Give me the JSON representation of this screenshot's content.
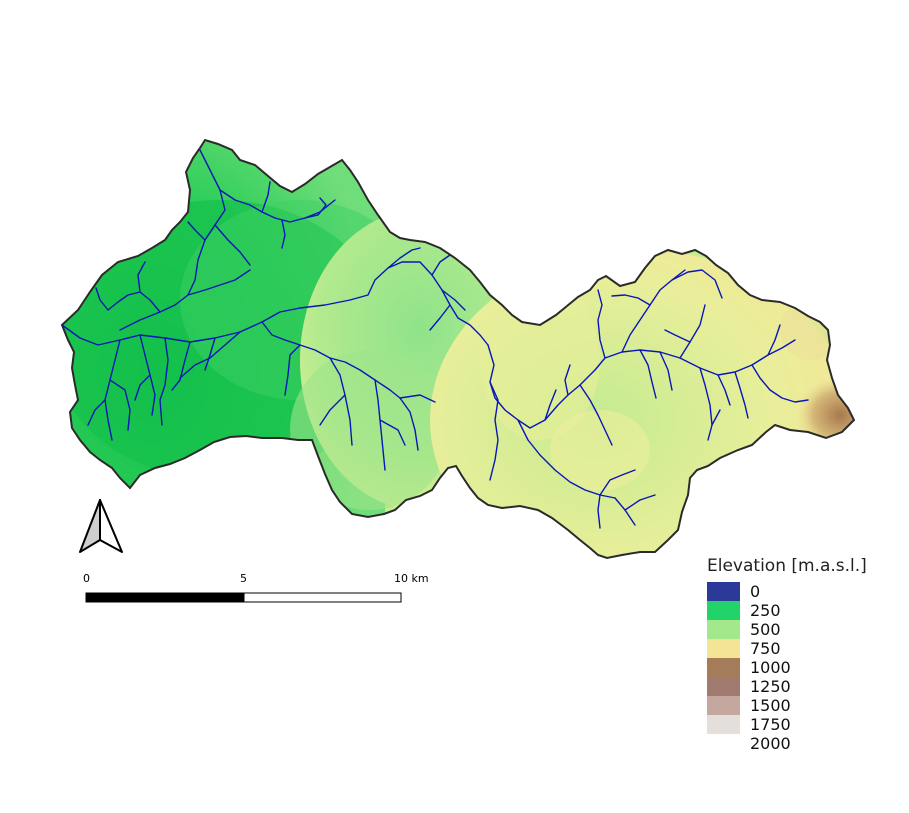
{
  "legend": {
    "title": "Elevation [m.a.s.l.]",
    "classes": [
      {
        "label": "0",
        "color": "#2b3999"
      },
      {
        "label": "250",
        "color": "#22d36a"
      },
      {
        "label": "500",
        "color": "#a3e88a"
      },
      {
        "label": "750",
        "color": "#f4e596"
      },
      {
        "label": "1000",
        "color": "#a47c5a"
      },
      {
        "label": "1250",
        "color": "#a07a6e"
      },
      {
        "label": "1500",
        "color": "#c4a89f"
      },
      {
        "label": "1750",
        "color": "#e5dfdc"
      },
      {
        "label": "2000",
        "color": "#ffffff"
      }
    ]
  },
  "scale_bar": {
    "labels": [
      "0",
      "5",
      "10 km"
    ]
  },
  "north_arrow": {
    "icon": "north-arrow-icon"
  },
  "colors": {
    "river": "#0a16b8",
    "outline": "#2a2a2a",
    "lowland": "#10c24a",
    "midland": "#a3e88a",
    "upland": "#f4e596",
    "peak": "#b07f50"
  }
}
